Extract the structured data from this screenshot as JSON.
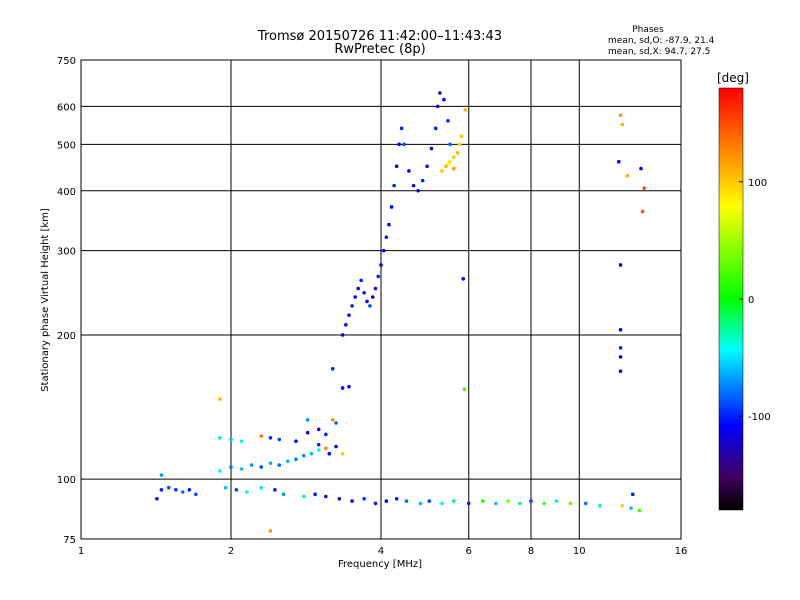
{
  "chart_data": {
    "type": "scatter",
    "title": "Tromsø 20150726 11:42:00–11:43:43",
    "subtitle": "RwPretec (8p)",
    "xlabel": "Frequency [MHz]",
    "ylabel": "Stationary phase Virtual Height [km]",
    "x_scale": "log",
    "y_scale": "log",
    "xlim": [
      1,
      16
    ],
    "ylim": [
      75,
      750
    ],
    "x_ticks": [
      1,
      2,
      4,
      6,
      8,
      10,
      16
    ],
    "y_ticks": [
      75,
      100,
      200,
      300,
      400,
      500,
      600,
      750
    ],
    "x_gridlines": [
      2,
      4,
      6,
      8,
      10
    ],
    "y_gridlines": [
      100,
      200,
      300,
      400,
      500,
      600
    ],
    "grid": true,
    "stats": {
      "heading": "Phases",
      "line1": "mean, sd,O: -87.9, 21.4",
      "line2": "mean, sd,X:  94.7, 27.5"
    },
    "colorbar": {
      "label": "[deg]",
      "range": [
        -180,
        180
      ],
      "ticks": [
        100,
        0,
        -100
      ],
      "colors": [
        "#ff0000",
        "#ff8800",
        "#ffff00",
        "#00ff00",
        "#00ffff",
        "#0000ff",
        "#400060",
        "#000000"
      ]
    },
    "series": [
      {
        "points": [
          {
            "x": 1.45,
            "y": 95,
            "c": -100
          },
          {
            "x": 1.5,
            "y": 96,
            "c": -90
          },
          {
            "x": 1.55,
            "y": 95,
            "c": -95
          },
          {
            "x": 1.6,
            "y": 94,
            "c": -80
          },
          {
            "x": 1.65,
            "y": 95,
            "c": -100
          },
          {
            "x": 1.7,
            "y": 93,
            "c": -90
          },
          {
            "x": 1.45,
            "y": 102,
            "c": -70
          },
          {
            "x": 1.42,
            "y": 91,
            "c": -110
          },
          {
            "x": 1.95,
            "y": 96,
            "c": -60
          },
          {
            "x": 2.05,
            "y": 95,
            "c": -90
          },
          {
            "x": 2.15,
            "y": 94,
            "c": -40
          },
          {
            "x": 2.3,
            "y": 96,
            "c": -50
          },
          {
            "x": 2.45,
            "y": 95,
            "c": -100
          },
          {
            "x": 2.55,
            "y": 93,
            "c": -70
          },
          {
            "x": 2.8,
            "y": 92,
            "c": -30
          },
          {
            "x": 2.95,
            "y": 93,
            "c": -110
          },
          {
            "x": 3.1,
            "y": 92,
            "c": -120
          },
          {
            "x": 3.3,
            "y": 91,
            "c": -130
          },
          {
            "x": 3.5,
            "y": 90,
            "c": -115
          },
          {
            "x": 3.7,
            "y": 91,
            "c": -100
          },
          {
            "x": 3.9,
            "y": 89,
            "c": -120
          },
          {
            "x": 4.1,
            "y": 90,
            "c": -110
          },
          {
            "x": 4.3,
            "y": 91,
            "c": -105
          },
          {
            "x": 4.5,
            "y": 90,
            "c": -80
          },
          {
            "x": 4.8,
            "y": 89,
            "c": -60
          },
          {
            "x": 5.0,
            "y": 90,
            "c": -90
          },
          {
            "x": 5.3,
            "y": 89,
            "c": -40
          },
          {
            "x": 5.6,
            "y": 90,
            "c": -20
          },
          {
            "x": 6.0,
            "y": 89,
            "c": -100
          },
          {
            "x": 6.4,
            "y": 90,
            "c": 10
          },
          {
            "x": 6.8,
            "y": 89,
            "c": -60
          },
          {
            "x": 7.2,
            "y": 90,
            "c": 40
          },
          {
            "x": 7.6,
            "y": 89,
            "c": -20
          },
          {
            "x": 8.0,
            "y": 90,
            "c": -90
          },
          {
            "x": 8.5,
            "y": 89,
            "c": 20
          },
          {
            "x": 9.0,
            "y": 90,
            "c": -50
          },
          {
            "x": 9.6,
            "y": 89,
            "c": 30
          },
          {
            "x": 10.3,
            "y": 89,
            "c": -80
          },
          {
            "x": 11.0,
            "y": 88,
            "c": -30
          },
          {
            "x": 12.2,
            "y": 88,
            "c": 100
          },
          {
            "x": 12.7,
            "y": 87,
            "c": -60
          },
          {
            "x": 13.2,
            "y": 86,
            "c": 20
          },
          {
            "x": 12.8,
            "y": 93,
            "c": -100
          },
          {
            "x": 2.4,
            "y": 78,
            "c": 120
          },
          {
            "x": 1.9,
            "y": 104,
            "c": -40
          },
          {
            "x": 2.0,
            "y": 106,
            "c": -80
          },
          {
            "x": 2.1,
            "y": 105,
            "c": -60
          },
          {
            "x": 2.2,
            "y": 107,
            "c": -70
          },
          {
            "x": 2.3,
            "y": 106,
            "c": -90
          },
          {
            "x": 2.4,
            "y": 108,
            "c": -65
          },
          {
            "x": 2.5,
            "y": 107,
            "c": -80
          },
          {
            "x": 2.6,
            "y": 109,
            "c": -60
          },
          {
            "x": 2.7,
            "y": 110,
            "c": -75
          },
          {
            "x": 2.8,
            "y": 112,
            "c": -70
          },
          {
            "x": 2.9,
            "y": 113,
            "c": -60
          },
          {
            "x": 3.0,
            "y": 115,
            "c": -40
          },
          {
            "x": 3.1,
            "y": 116,
            "c": 130
          },
          {
            "x": 3.0,
            "y": 118,
            "c": -100
          },
          {
            "x": 3.15,
            "y": 113,
            "c": -110
          },
          {
            "x": 3.25,
            "y": 117,
            "c": -120
          },
          {
            "x": 1.9,
            "y": 122,
            "c": -50
          },
          {
            "x": 2.0,
            "y": 121,
            "c": -60
          },
          {
            "x": 2.1,
            "y": 120,
            "c": -40
          },
          {
            "x": 2.3,
            "y": 123,
            "c": 130
          },
          {
            "x": 2.4,
            "y": 122,
            "c": -100
          },
          {
            "x": 2.5,
            "y": 121,
            "c": -90
          },
          {
            "x": 2.7,
            "y": 120,
            "c": -110
          },
          {
            "x": 2.85,
            "y": 125,
            "c": -120
          },
          {
            "x": 3.0,
            "y": 127,
            "c": -110
          },
          {
            "x": 3.1,
            "y": 124,
            "c": -100
          },
          {
            "x": 2.85,
            "y": 133,
            "c": -70
          },
          {
            "x": 3.25,
            "y": 131,
            "c": -80
          },
          {
            "x": 3.35,
            "y": 155,
            "c": -110
          },
          {
            "x": 3.45,
            "y": 156,
            "c": -120
          },
          {
            "x": 3.2,
            "y": 133,
            "c": 120
          },
          {
            "x": 3.35,
            "y": 113,
            "c": 100
          },
          {
            "x": 1.9,
            "y": 147,
            "c": 110
          },
          {
            "x": 5.88,
            "y": 154,
            "c": 20
          },
          {
            "x": 3.35,
            "y": 200,
            "c": -120
          },
          {
            "x": 3.4,
            "y": 210,
            "c": -110
          },
          {
            "x": 3.45,
            "y": 220,
            "c": -120
          },
          {
            "x": 3.5,
            "y": 230,
            "c": -100
          },
          {
            "x": 3.55,
            "y": 240,
            "c": -120
          },
          {
            "x": 3.6,
            "y": 250,
            "c": -110
          },
          {
            "x": 3.65,
            "y": 260,
            "c": -100
          },
          {
            "x": 3.7,
            "y": 245,
            "c": -120
          },
          {
            "x": 3.75,
            "y": 235,
            "c": -110
          },
          {
            "x": 3.8,
            "y": 230,
            "c": -90
          },
          {
            "x": 3.85,
            "y": 240,
            "c": -120
          },
          {
            "x": 3.9,
            "y": 250,
            "c": -110
          },
          {
            "x": 3.95,
            "y": 265,
            "c": -100
          },
          {
            "x": 4.0,
            "y": 280,
            "c": -120
          },
          {
            "x": 4.05,
            "y": 300,
            "c": -110
          },
          {
            "x": 4.1,
            "y": 320,
            "c": -100
          },
          {
            "x": 4.15,
            "y": 340,
            "c": -120
          },
          {
            "x": 4.2,
            "y": 370,
            "c": -110
          },
          {
            "x": 4.25,
            "y": 410,
            "c": -100
          },
          {
            "x": 4.3,
            "y": 450,
            "c": -120
          },
          {
            "x": 4.35,
            "y": 500,
            "c": -110
          },
          {
            "x": 4.4,
            "y": 540,
            "c": -100
          },
          {
            "x": 4.45,
            "y": 500,
            "c": -90
          },
          {
            "x": 4.55,
            "y": 440,
            "c": -110
          },
          {
            "x": 4.65,
            "y": 410,
            "c": -120
          },
          {
            "x": 4.75,
            "y": 400,
            "c": -110
          },
          {
            "x": 4.85,
            "y": 420,
            "c": -100
          },
          {
            "x": 4.95,
            "y": 450,
            "c": -120
          },
          {
            "x": 5.05,
            "y": 490,
            "c": -110
          },
          {
            "x": 5.15,
            "y": 540,
            "c": -100
          },
          {
            "x": 5.2,
            "y": 600,
            "c": -120
          },
          {
            "x": 5.25,
            "y": 640,
            "c": -130
          },
          {
            "x": 5.35,
            "y": 620,
            "c": -110
          },
          {
            "x": 5.45,
            "y": 560,
            "c": -100
          },
          {
            "x": 5.5,
            "y": 500,
            "c": -80
          },
          {
            "x": 3.2,
            "y": 170,
            "c": -100
          },
          {
            "x": 5.3,
            "y": 440,
            "c": 100
          },
          {
            "x": 5.4,
            "y": 450,
            "c": 110
          },
          {
            "x": 5.5,
            "y": 460,
            "c": 90
          },
          {
            "x": 5.6,
            "y": 470,
            "c": 100
          },
          {
            "x": 5.7,
            "y": 480,
            "c": 105
          },
          {
            "x": 5.75,
            "y": 500,
            "c": 95
          },
          {
            "x": 5.8,
            "y": 520,
            "c": 100
          },
          {
            "x": 5.9,
            "y": 590,
            "c": 110
          },
          {
            "x": 5.6,
            "y": 445,
            "c": 120
          },
          {
            "x": 5.45,
            "y": 455,
            "c": 80
          },
          {
            "x": 5.85,
            "y": 262,
            "c": -110
          },
          {
            "x": 12.1,
            "y": 575,
            "c": 125
          },
          {
            "x": 12.2,
            "y": 550,
            "c": 110
          },
          {
            "x": 12.0,
            "y": 460,
            "c": -110
          },
          {
            "x": 12.5,
            "y": 430,
            "c": 110
          },
          {
            "x": 13.3,
            "y": 445,
            "c": -120
          },
          {
            "x": 13.5,
            "y": 405,
            "c": 150
          },
          {
            "x": 13.4,
            "y": 362,
            "c": 150
          },
          {
            "x": 12.1,
            "y": 280,
            "c": -120
          },
          {
            "x": 12.1,
            "y": 205,
            "c": -110
          },
          {
            "x": 12.1,
            "y": 188,
            "c": -100
          },
          {
            "x": 12.1,
            "y": 180,
            "c": -110
          },
          {
            "x": 12.1,
            "y": 168,
            "c": -130
          }
        ]
      }
    ]
  }
}
